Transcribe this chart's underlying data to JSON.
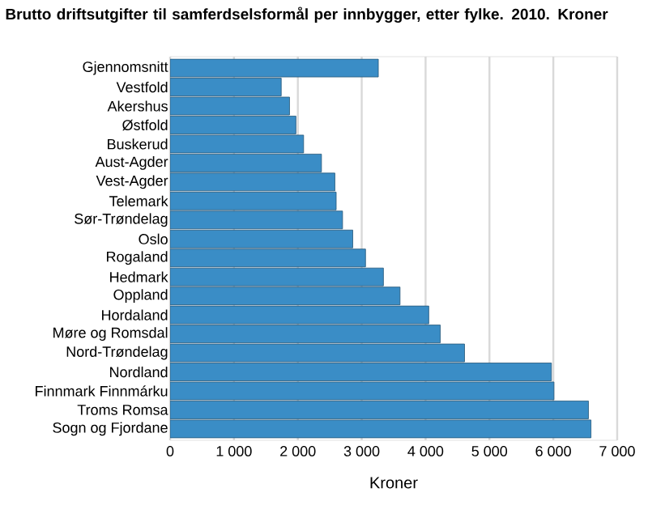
{
  "chart_data": {
    "type": "bar",
    "orientation": "horizontal",
    "title": "Brutto driftsutgifter til samferdselsformål per innbygger, etter fylke. 2010. Kroner",
    "xlabel": "Kroner",
    "categories": [
      "Gjennomsnitt",
      "Vestfold",
      "Akershus",
      "Østfold",
      "Buskerud",
      "Aust-Agder",
      "Vest-Agder",
      "Telemark",
      "Sør-Trøndelag",
      "Oslo",
      "Rogaland",
      "Hedmark",
      "Oppland",
      "Hordaland",
      "Møre og Romsdal",
      "Nord-Trøndelag",
      "Nordland",
      "Finnmark Finnmárku",
      "Troms Romsa",
      "Sogn og Fjordane"
    ],
    "values": [
      3260,
      1740,
      1870,
      1970,
      2090,
      2370,
      2580,
      2600,
      2700,
      2860,
      3060,
      3340,
      3600,
      4050,
      4230,
      4610,
      5970,
      6010,
      6550,
      6590
    ],
    "color": "#3a8dc6",
    "xlim": [
      0,
      7000
    ],
    "xticks": [
      0,
      {
        "value": 1000,
        "label": "1 000"
      },
      {
        "value": 2000,
        "label": "2 000"
      },
      {
        "value": 3000,
        "label": "3 000"
      },
      {
        "value": 4000,
        "label": "4 000"
      },
      {
        "value": 5000,
        "label": "5 000"
      },
      {
        "value": 6000,
        "label": "6 000"
      },
      {
        "value": 7000,
        "label": "7 000"
      }
    ],
    "grid": "x"
  }
}
